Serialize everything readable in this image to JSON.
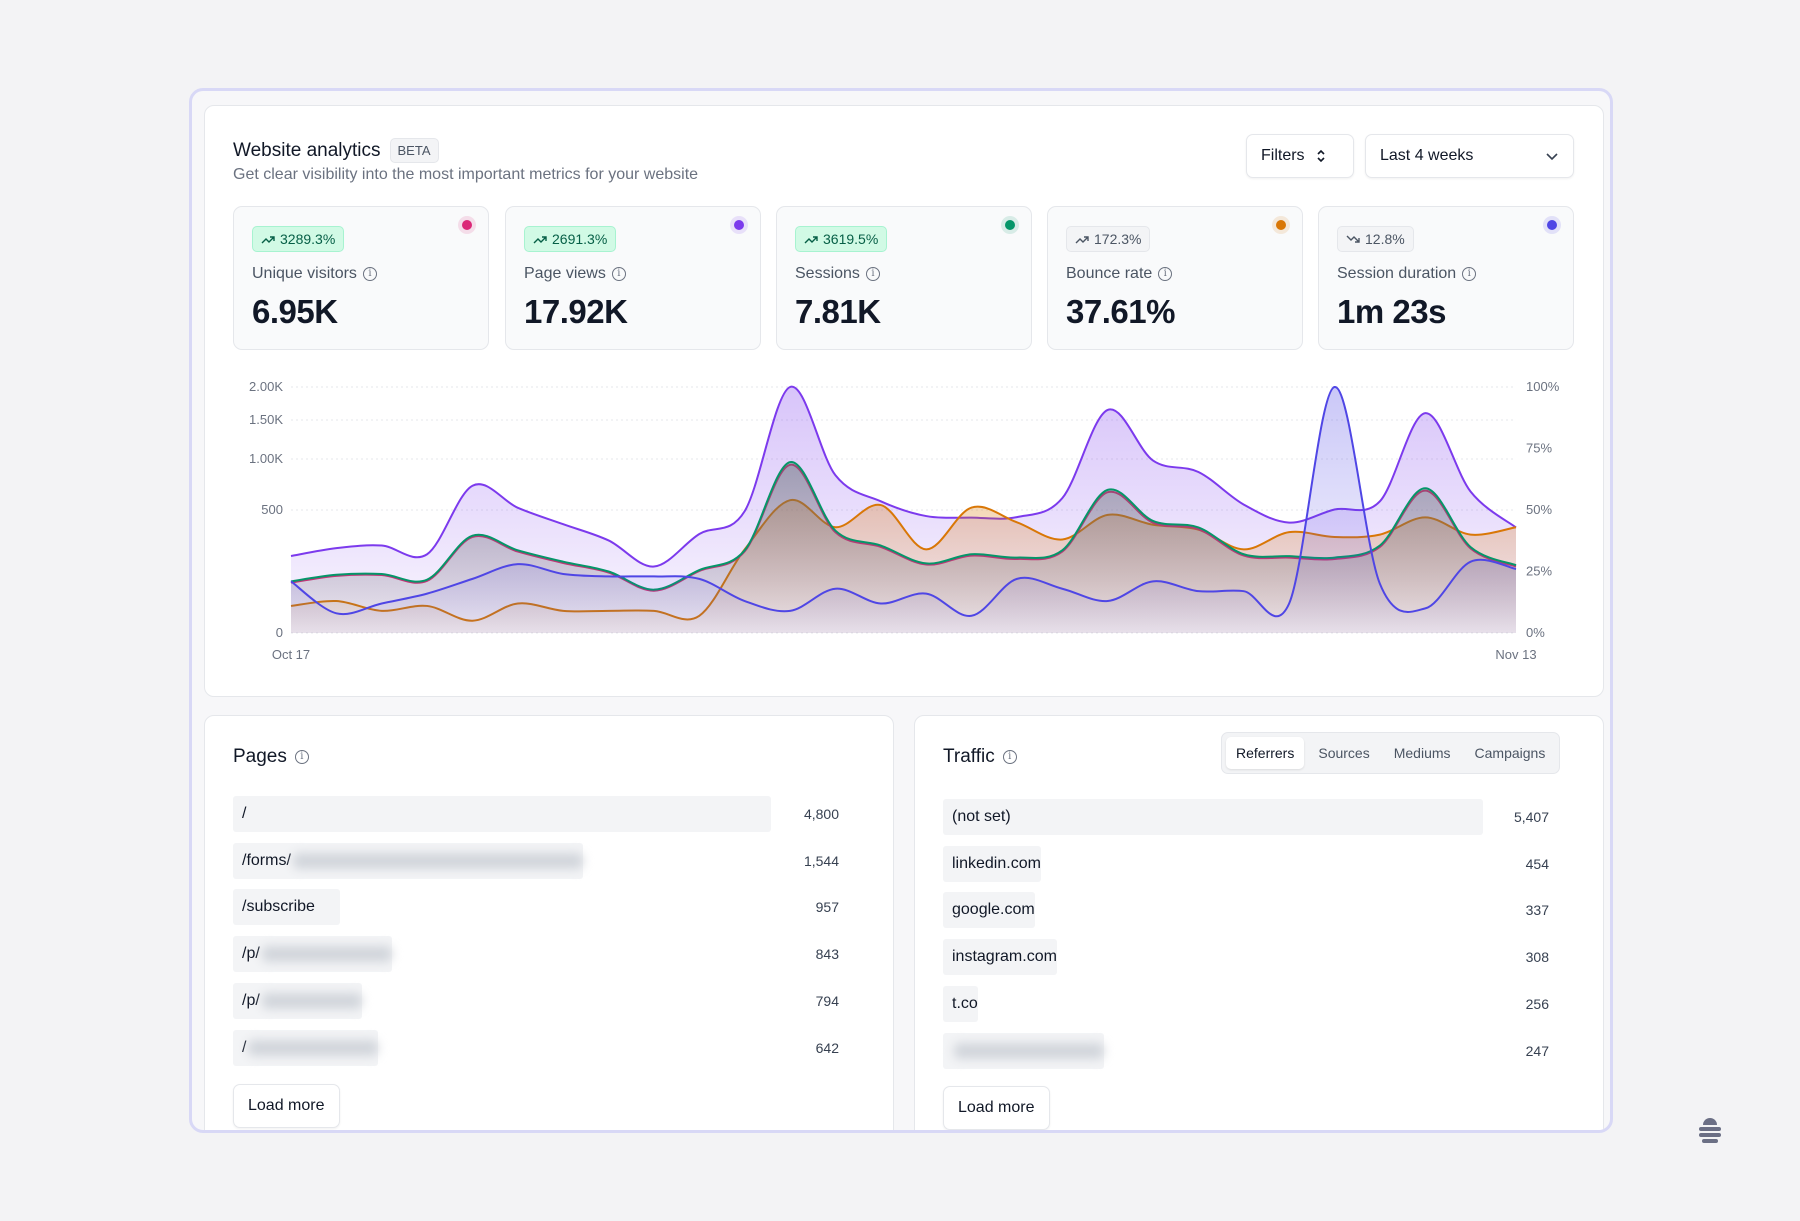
{
  "header": {
    "title": "Website analytics",
    "badge": "BETA",
    "subtitle": "Get clear visibility into the most important metrics for your website",
    "filters_label": "Filters",
    "date_range": "Last 4 weeks"
  },
  "metrics": [
    {
      "label": "Unique visitors",
      "value": "6.95K",
      "change": "3289.3%",
      "trend": "up",
      "color": "#db2777"
    },
    {
      "label": "Page views",
      "value": "17.92K",
      "change": "2691.3%",
      "trend": "up",
      "color": "#7c3aed"
    },
    {
      "label": "Sessions",
      "value": "7.81K",
      "change": "3619.5%",
      "trend": "up",
      "color": "#059669"
    },
    {
      "label": "Bounce rate",
      "value": "37.61%",
      "change": "172.3%",
      "trend": "up-neutral",
      "color": "#d97706"
    },
    {
      "label": "Session duration",
      "value": "1m 23s",
      "change": "12.8%",
      "trend": "down-neutral",
      "color": "#4f46e5"
    }
  ],
  "chart_data": {
    "type": "area",
    "x_labels": [
      "Oct 17",
      "Nov 13"
    ],
    "left_axis": {
      "scale": "sqrt",
      "range": [
        0,
        2000
      ],
      "ticks": [
        "0",
        "500",
        "1.00K",
        "1.50K",
        "2.00K"
      ],
      "tick_values": [
        0,
        500,
        1000,
        1500,
        2000
      ]
    },
    "right_axis": {
      "scale": "linear",
      "range": [
        0,
        100
      ],
      "ticks": [
        "0%",
        "25%",
        "50%",
        "75%",
        "100%"
      ],
      "tick_values": [
        0,
        25,
        50,
        75,
        100
      ]
    },
    "grid": true,
    "series": [
      {
        "name": "Page views",
        "axis": "left",
        "color": "#7c3aed",
        "values": [
          196,
          238,
          253,
          205,
          717,
          518,
          391,
          283,
          146,
          324,
          491,
          2000,
          822,
          573,
          452,
          440,
          444,
          601,
          1645,
          983,
          857,
          545,
          403,
          504,
          573,
          1598,
          661,
          368
        ]
      },
      {
        "name": "Bounce rate",
        "axis": "right",
        "color": "#d97706",
        "values": [
          11,
          13,
          9,
          11,
          5,
          12,
          9,
          9,
          9,
          7,
          34,
          54,
          43,
          52,
          34,
          51,
          45,
          38,
          48,
          44,
          42,
          34,
          41,
          39,
          40,
          47,
          40,
          43
        ]
      },
      {
        "name": "Unique visitors",
        "axis": "left",
        "color": "#db2777",
        "values": [
          84,
          108,
          111,
          90,
          305,
          219,
          162,
          121,
          59,
          127,
          220,
          935,
          335,
          245,
          155,
          198,
          181,
          219,
          655,
          402,
          356,
          198,
          188,
          181,
          245,
          670,
          236,
          146
        ]
      },
      {
        "name": "Sessions",
        "axis": "left",
        "color": "#059669",
        "values": [
          88,
          112,
          115,
          94,
          313,
          226,
          168,
          125,
          62,
          131,
          226,
          965,
          346,
          253,
          160,
          205,
          188,
          226,
          677,
          415,
          368,
          205,
          195,
          188,
          253,
          692,
          244,
          152
        ]
      },
      {
        "name": "Session duration",
        "axis": "right",
        "color": "#4f46e5",
        "values": [
          21,
          8,
          12,
          16,
          22,
          28,
          24,
          23,
          23,
          22,
          13,
          9,
          18,
          12,
          16,
          7,
          22,
          18,
          13,
          21,
          17,
          17,
          12,
          100,
          20,
          10,
          29,
          26
        ]
      }
    ]
  },
  "pages": {
    "title": "Pages",
    "rows": [
      {
        "path": "/",
        "value": "4,800",
        "n": 4800,
        "blurred": 0
      },
      {
        "path": "/forms/",
        "value": "1,544",
        "n": 1544,
        "blurred": 290
      },
      {
        "path": "/subscribe",
        "value": "957",
        "n": 957,
        "blurred": 0
      },
      {
        "path": "/p/",
        "value": "843",
        "n": 843,
        "blurred": 130
      },
      {
        "path": "/p/",
        "value": "794",
        "n": 794,
        "blurred": 100
      },
      {
        "path": "/",
        "value": "642",
        "n": 642,
        "blurred": 130
      }
    ],
    "load_more": "Load more"
  },
  "traffic": {
    "title": "Traffic",
    "tabs": [
      "Referrers",
      "Sources",
      "Mediums",
      "Campaigns"
    ],
    "active_tab": "Referrers",
    "rows": [
      {
        "name": "(not set)",
        "value": "5,407",
        "n": 5407,
        "blurred": 0
      },
      {
        "name": "linkedin.com",
        "value": "454",
        "n": 454,
        "blurred": 0
      },
      {
        "name": "google.com",
        "value": "337",
        "n": 337,
        "blurred": 0
      },
      {
        "name": "instagram.com",
        "value": "308",
        "n": 308,
        "blurred": 0
      },
      {
        "name": "t.co",
        "value": "256",
        "n": 256,
        "blurred": 0
      },
      {
        "name": "",
        "value": "247",
        "n": 247,
        "blurred": 150
      }
    ],
    "load_more": "Load more"
  }
}
